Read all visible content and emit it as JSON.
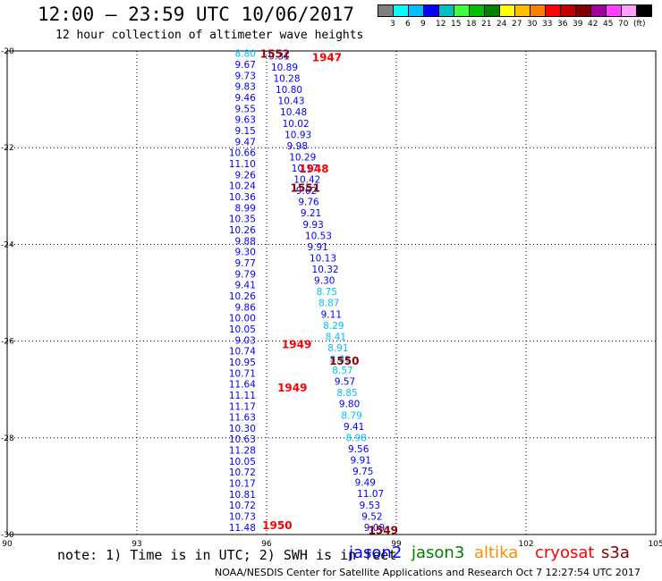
{
  "header": {
    "title": "12:00 – 23:59 UTC 10/06/2017",
    "subtitle": "12 hour collection of altimeter wave heights"
  },
  "legend": {
    "colors": [
      "#808080",
      "#00ffff",
      "#00bfff",
      "#0000ff",
      "#00c0c0",
      "#40ff40",
      "#00c000",
      "#008000",
      "#ffff00",
      "#ffc000",
      "#ff8000",
      "#ff0000",
      "#c00000",
      "#800000",
      "#a000a0",
      "#ff40ff",
      "#ffa0ff",
      "#000000"
    ],
    "labels": [
      "3",
      "6",
      "9",
      "12",
      "15",
      "18",
      "21",
      "24",
      "27",
      "30",
      "33",
      "36",
      "39",
      "42",
      "45",
      "70",
      "(ft)"
    ]
  },
  "axes": {
    "lat_labels": [
      "-20",
      "-22",
      "-24",
      "-26",
      "-28",
      "-30"
    ],
    "lon_labels": [
      "90",
      "93",
      "96",
      "99",
      "102",
      "105"
    ]
  },
  "satellites": [
    {
      "name": "jason2",
      "color": "#0000ff"
    },
    {
      "name": "jason3",
      "color": "#008000"
    },
    {
      "name": "altika",
      "color": "#ff8c00"
    },
    {
      "name": "cryosat",
      "color": "#ff0000"
    },
    {
      "name": "s3a",
      "color": "#8b0000"
    }
  ],
  "footer": {
    "note": "note: 1) Time is in UTC; 2) SWH is in feet",
    "credit": "NOAA/NESDIS Center for Satellite Applications and Research   Oct  7 12:27:54 UTC 2017"
  },
  "map_data": {
    "lat_range": [
      -30,
      -20
    ],
    "lon_range": [
      90,
      105
    ],
    "time_tags": [
      {
        "text": "1552",
        "lat": -20.05,
        "lon": 95.85,
        "color": "#8b0000"
      },
      {
        "text": "1947",
        "lat": -20.12,
        "lon": 97.05,
        "color": "#ff0000"
      },
      {
        "text": "1948",
        "lat": -22.42,
        "lon": 96.75,
        "color": "#ff0000"
      },
      {
        "text": "1551",
        "lat": -22.82,
        "lon": 96.55,
        "color": "#8b0000"
      },
      {
        "text": "1949",
        "lat": -26.05,
        "lon": 96.35,
        "color": "#ff0000"
      },
      {
        "text": "1550",
        "lat": -26.4,
        "lon": 97.45,
        "color": "#8b0000"
      },
      {
        "text": "1949",
        "lat": -26.95,
        "lon": 96.25,
        "color": "#ff0000"
      },
      {
        "text": "1950",
        "lat": -29.8,
        "lon": 95.9,
        "color": "#ff0000"
      },
      {
        "text": "1549",
        "lat": -29.9,
        "lon": 98.35,
        "color": "#8b0000"
      }
    ],
    "tracks": [
      {
        "satellite": "jason2",
        "label_side": "left",
        "lon_start": 95.75,
        "lon_end": 95.75,
        "lat_start": -20.05,
        "lat_end": -29.85,
        "values": [
          "8.80",
          "9.67",
          "9.73",
          "9.83",
          "9.46",
          "9.55",
          "9.63",
          "9.15",
          "9.47",
          "10.66",
          "11.10",
          "9.26",
          "10.24",
          "10.36",
          "8.99",
          "10.35",
          "10.26",
          "9.88",
          "9.30",
          "9.77",
          "9.79",
          "9.41",
          "10.26",
          "9.86",
          "10.00",
          "10.05",
          "9.03",
          "10.74",
          "10.95",
          "10.71",
          "11.64",
          "11.11",
          "11.17",
          "11.63",
          "10.30",
          "10.63",
          "11.28",
          "10.05",
          "10.72",
          "10.17",
          "10.81",
          "10.72",
          "10.73",
          "11.48"
        ],
        "colors": [
          "#00bfff",
          "#0000ff",
          "#0000ff",
          "#0000ff",
          "#0000ff",
          "#0000ff",
          "#0000ff",
          "#0000ff",
          "#0000ff",
          "#0000ff",
          "#0000ff",
          "#0000ff",
          "#0000ff",
          "#0000ff",
          "#0000ff",
          "#0000ff",
          "#0000ff",
          "#0000ff",
          "#0000ff",
          "#0000ff",
          "#0000ff",
          "#0000ff",
          "#0000ff",
          "#0000ff",
          "#0000ff",
          "#0000ff",
          "#0000ff",
          "#0000ff",
          "#0000ff",
          "#0000ff",
          "#0000ff",
          "#0000ff",
          "#0000ff",
          "#0000ff",
          "#0000ff",
          "#0000ff",
          "#0000ff",
          "#0000ff",
          "#0000ff",
          "#0000ff",
          "#0000ff",
          "#0000ff",
          "#0000ff",
          "#0000ff"
        ]
      },
      {
        "satellite": "jason2",
        "label_side": "right",
        "lon_start": 96.05,
        "lon_end": 98.25,
        "lat_start": -20.1,
        "lat_end": -29.85,
        "values": [
          "9.31",
          "10.89",
          "10.28",
          "10.80",
          "10.43",
          "10.48",
          "10.02",
          "10.93",
          "9.98",
          "10.29",
          "10.17",
          "10.42",
          "9.62",
          "9.76",
          "9.21",
          "9.93",
          "10.53",
          "9.91",
          "10.13",
          "10.32",
          "9.30",
          "8.75",
          "8.87",
          "9.11",
          "8.29",
          "8.41",
          "8.91",
          "8.81",
          "8.57",
          "9.57",
          "8.85",
          "9.80",
          "8.79",
          "9.41",
          "8.98",
          "9.56",
          "9.91",
          "9.75",
          "9.49",
          "11.07",
          "9.53",
          "9.52",
          "9.09"
        ],
        "colors": [
          "#0000ff",
          "#0000ff",
          "#0000ff",
          "#0000ff",
          "#0000ff",
          "#0000ff",
          "#0000ff",
          "#0000ff",
          "#0000ff",
          "#0000ff",
          "#0000ff",
          "#0000ff",
          "#0000ff",
          "#0000ff",
          "#0000ff",
          "#0000ff",
          "#0000ff",
          "#0000ff",
          "#0000ff",
          "#0000ff",
          "#0000ff",
          "#00bfff",
          "#00bfff",
          "#0000ff",
          "#00bfff",
          "#00bfff",
          "#00bfff",
          "#00bfff",
          "#00bfff",
          "#0000ff",
          "#00bfff",
          "#0000ff",
          "#00bfff",
          "#0000ff",
          "#00bfff",
          "#0000ff",
          "#0000ff",
          "#0000ff",
          "#0000ff",
          "#0000ff",
          "#0000ff",
          "#0000ff",
          "#0000ff"
        ]
      }
    ]
  }
}
